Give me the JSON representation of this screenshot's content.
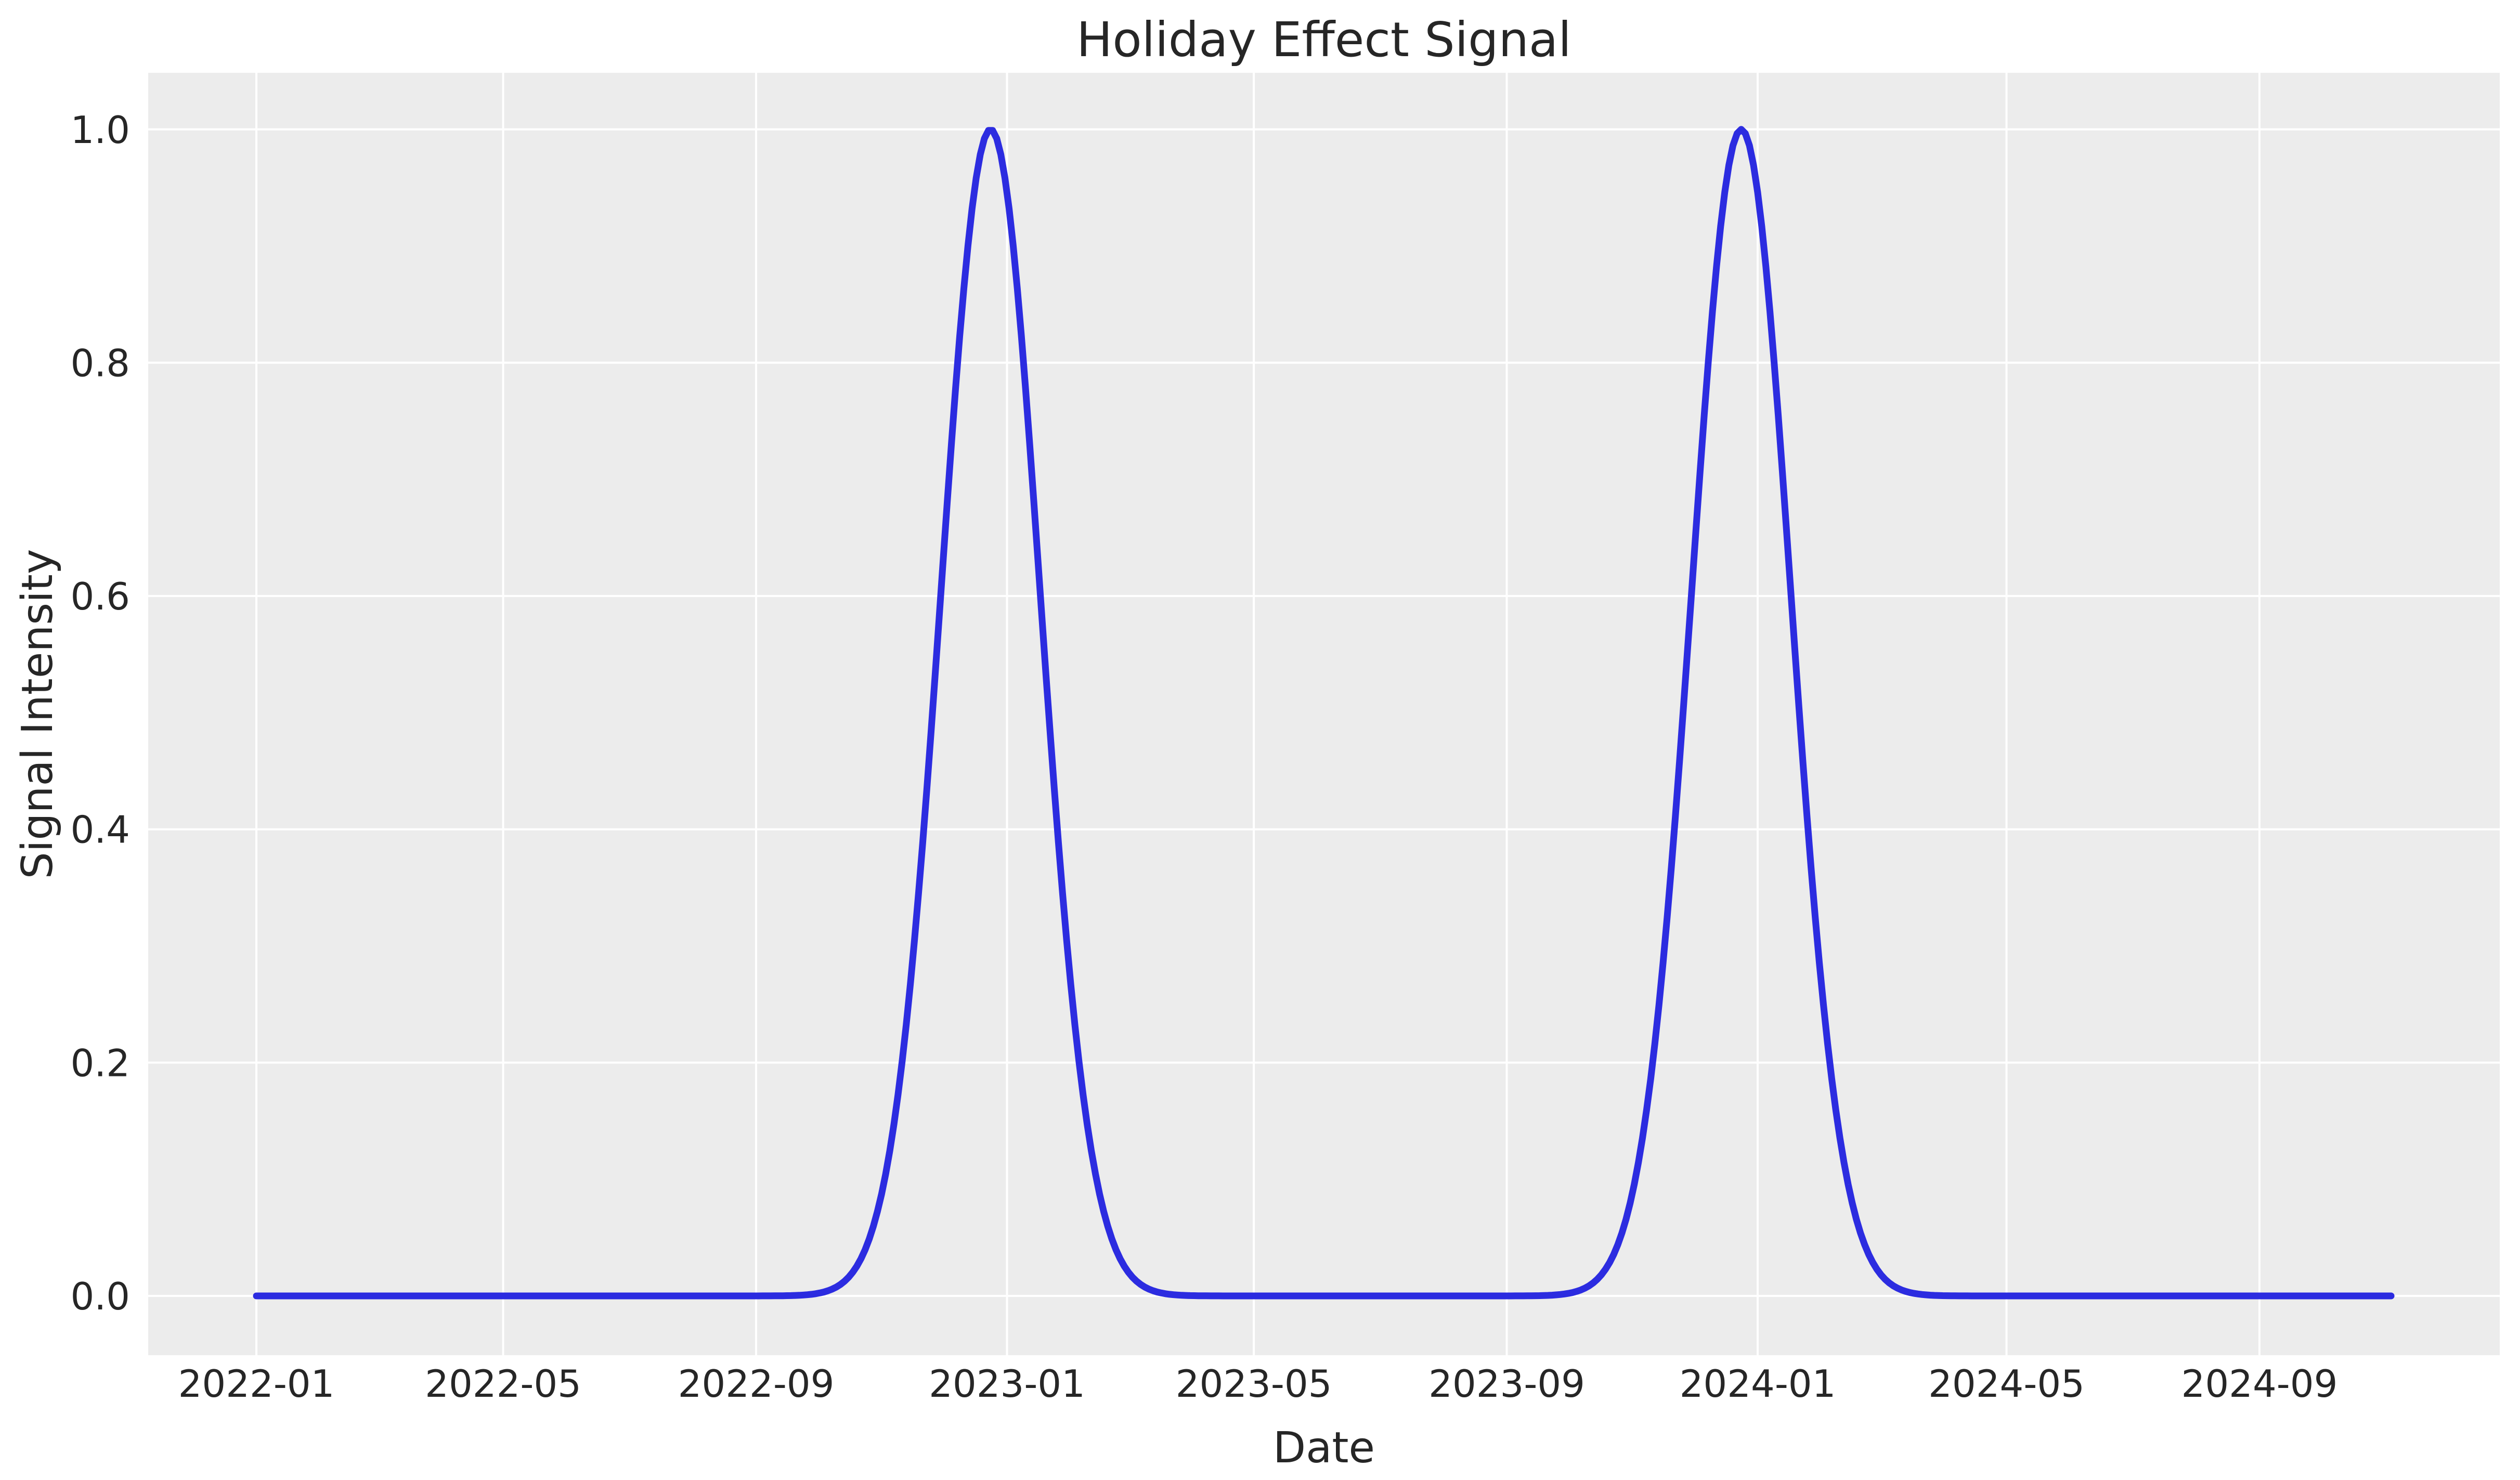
{
  "figure": {
    "title": "Holiday Effect Signal"
  },
  "colors": {
    "plot_background": "#ececec",
    "grid": "#ffffff",
    "text": "#262626",
    "line": "#2c2ce0",
    "page_background": "#ffffff"
  },
  "chart_data": {
    "type": "line",
    "title": "Holiday Effect Signal",
    "xlabel": "Date",
    "ylabel": "Signal Intensity",
    "grid": true,
    "legend": null,
    "x_tick_labels": [
      "2022-01",
      "2022-05",
      "2022-09",
      "2023-01",
      "2023-05",
      "2023-09",
      "2024-01",
      "2024-05",
      "2024-09"
    ],
    "y_tick_labels": [
      "0.0",
      "0.2",
      "0.4",
      "0.6",
      "0.8",
      "1.0"
    ],
    "y_tick_values": [
      0.0,
      0.2,
      0.4,
      0.6,
      0.8,
      1.0
    ],
    "ylim": [
      -0.05,
      1.05
    ],
    "x_start_date": "2022-01-01",
    "x_end_date": "2024-11-05",
    "series": [
      {
        "name": "holiday effect signal",
        "color": "#2c2ce0",
        "model": "sum_of_gaussians",
        "baseline": 0.0,
        "amplitude": 1.0,
        "sigma_days": 24,
        "peak_dates": [
          "2022-12-24",
          "2023-12-24"
        ],
        "peak_value": 1.0,
        "sample_step_days": 2
      }
    ]
  }
}
